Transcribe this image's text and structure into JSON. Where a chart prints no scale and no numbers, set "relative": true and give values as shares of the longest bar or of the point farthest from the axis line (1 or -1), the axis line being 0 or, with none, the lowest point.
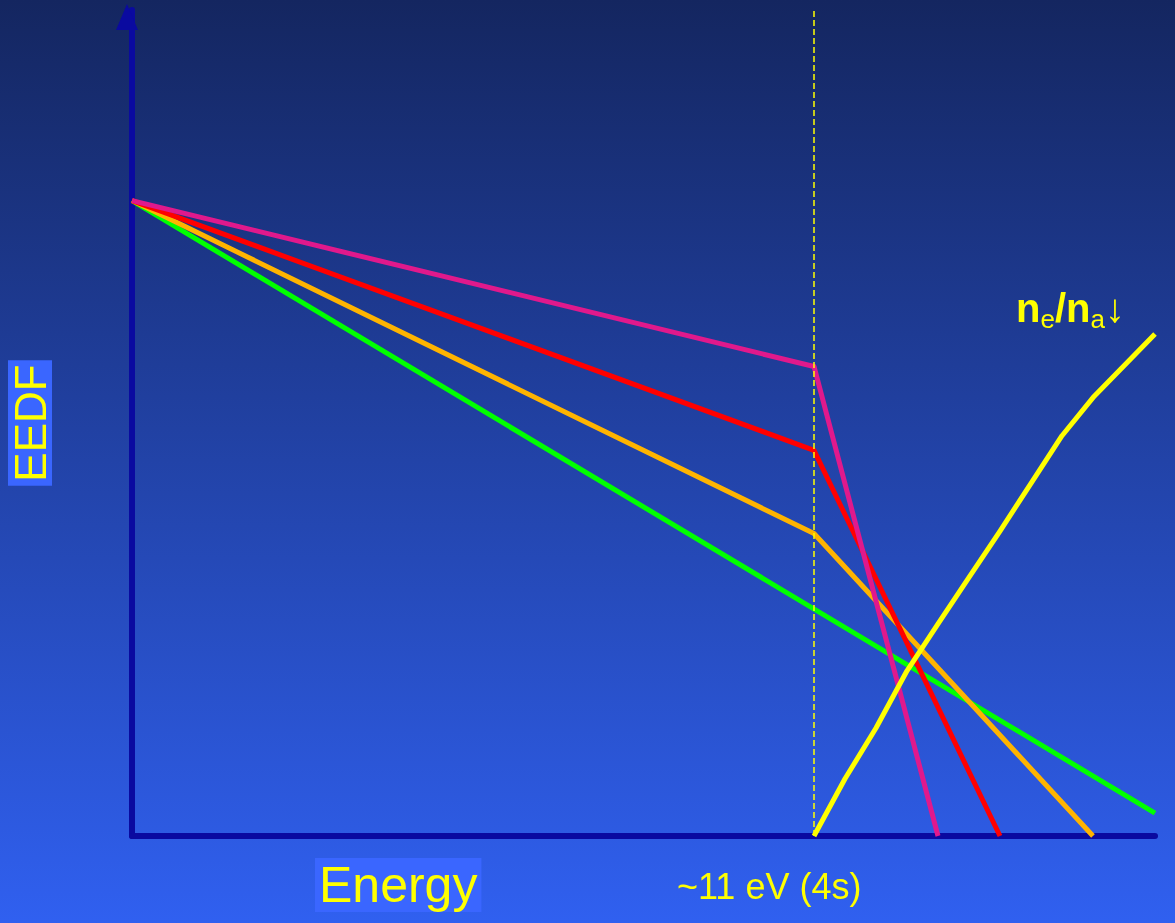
{
  "chart_data": {
    "type": "line",
    "relative": true,
    "xlabel": "Energy",
    "ylabel": "EEDF",
    "marker": "none",
    "line_style": "solid",
    "categories": [
      null,
      null,
      null,
      null,
      null,
      null,
      null,
      null,
      null,
      null,
      null,
      null,
      null,
      null,
      null,
      null,
      null,
      null,
      null,
      null,
      null,
      null,
      null,
      null,
      null,
      null,
      null,
      null,
      null,
      null,
      null,
      null,
      null,
      null
    ],
    "annotations": [
      "n$_{e}$/n$_{a}$↓",
      "~11 eV (4s)"
    ],
    "series": [
      {
        "color": "#00ff00",
        "values": [
          1,
          null,
          null,
          null,
          null,
          null,
          null,
          null,
          null,
          null,
          null,
          null,
          null,
          null,
          null,
          null,
          null,
          null,
          null,
          null,
          null,
          null,
          null,
          null,
          null,
          null,
          null,
          null,
          null,
          null,
          null,
          null,
          null,
          0.036
        ]
      },
      {
        "color": "#ffb400",
        "values": [
          1,
          null,
          null,
          null,
          null,
          null,
          null,
          null,
          null,
          null,
          null,
          null,
          null,
          null,
          null,
          null,
          null,
          null,
          null,
          null,
          null,
          null,
          0.476,
          null,
          null,
          null,
          null,
          null,
          null,
          null,
          null,
          0,
          null,
          null
        ]
      },
      {
        "color": "#ff0000",
        "values": [
          1,
          null,
          null,
          null,
          null,
          null,
          null,
          null,
          null,
          null,
          null,
          null,
          null,
          null,
          null,
          null,
          null,
          null,
          null,
          null,
          null,
          null,
          0.607,
          null,
          null,
          null,
          null,
          null,
          0,
          null,
          null,
          null,
          null,
          null
        ]
      },
      {
        "color": "#e0198c",
        "values": [
          1,
          null,
          null,
          null,
          null,
          null,
          null,
          null,
          null,
          null,
          null,
          null,
          null,
          null,
          null,
          null,
          null,
          null,
          null,
          null,
          null,
          null,
          0.739,
          null,
          null,
          null,
          0,
          null,
          null,
          null,
          null,
          null,
          null,
          null
        ]
      },
      {
        "color": "#ffff00",
        "values": [
          null,
          null,
          null,
          null,
          null,
          null,
          null,
          null,
          null,
          null,
          null,
          null,
          null,
          null,
          null,
          null,
          null,
          null,
          null,
          null,
          null,
          null,
          0,
          0.09,
          0.17,
          0.26,
          0.334,
          0.407,
          0.48,
          0.555,
          0.63,
          0.69,
          0.74,
          0.79
        ]
      }
    ]
  }
}
